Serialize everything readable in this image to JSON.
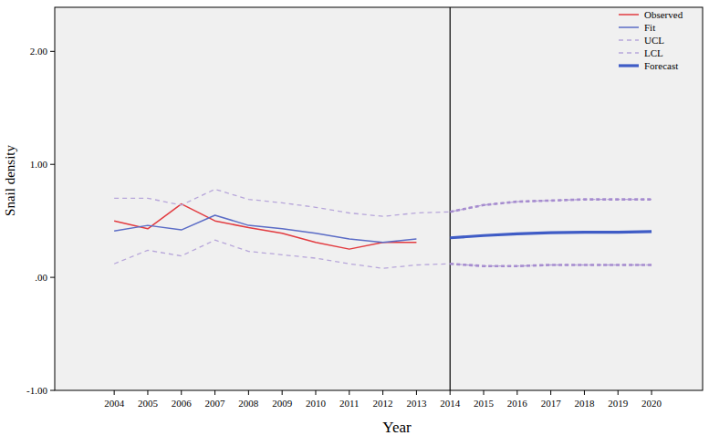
{
  "chart_data": {
    "type": "line",
    "x_label": "Year",
    "y_label": "Snail density",
    "categories": [
      "2004",
      "2005",
      "2006",
      "2007",
      "2008",
      "2009",
      "2010",
      "2011",
      "2012",
      "2013",
      "2014",
      "2015",
      "2016",
      "2017",
      "2018",
      "2019",
      "2020"
    ],
    "ylim": [
      -1,
      2.39
    ],
    "yticks": [
      {
        "value": -1,
        "label": "-1.00"
      },
      {
        "value": 0,
        "label": ".00"
      },
      {
        "value": 1,
        "label": "1.00"
      },
      {
        "value": 2,
        "label": "2.00"
      }
    ],
    "grid": false,
    "legend": "top-right",
    "series": [
      {
        "name": "Observed",
        "color": "#e23b40",
        "line_style": "solid",
        "values": [
          0.5,
          0.43,
          0.65,
          0.5,
          0.44,
          0.39,
          0.31,
          0.25,
          0.31,
          0.31,
          null,
          null,
          null,
          null,
          null,
          null,
          null
        ]
      },
      {
        "name": "Fit",
        "color": "#5b6cc6",
        "line_style": "solid",
        "values": [
          0.41,
          0.46,
          0.42,
          0.55,
          0.46,
          0.43,
          0.39,
          0.34,
          0.31,
          0.34,
          null,
          null,
          null,
          null,
          null,
          null,
          null
        ]
      },
      {
        "name": "UCL",
        "color": "#b7a6da",
        "line_style": "dashed",
        "values": [
          0.7,
          0.7,
          0.64,
          0.78,
          0.69,
          0.66,
          0.62,
          0.57,
          0.54,
          0.57,
          0.58,
          0.64,
          0.67,
          0.68,
          0.69,
          0.69,
          0.69
        ]
      },
      {
        "name": "LCL",
        "color": "#b7a6da",
        "line_style": "dashed",
        "values": [
          0.12,
          0.24,
          0.19,
          0.33,
          0.23,
          0.2,
          0.17,
          0.12,
          0.08,
          0.11,
          0.12,
          0.1,
          0.1,
          0.11,
          0.11,
          0.11,
          0.11
        ]
      },
      {
        "name": "Forecast",
        "color": "#3f5cc6",
        "line_style": "thick",
        "values": [
          null,
          null,
          null,
          null,
          null,
          null,
          null,
          null,
          null,
          null,
          0.35,
          0.37,
          0.385,
          0.395,
          0.4,
          0.4,
          0.405
        ]
      }
    ]
  }
}
